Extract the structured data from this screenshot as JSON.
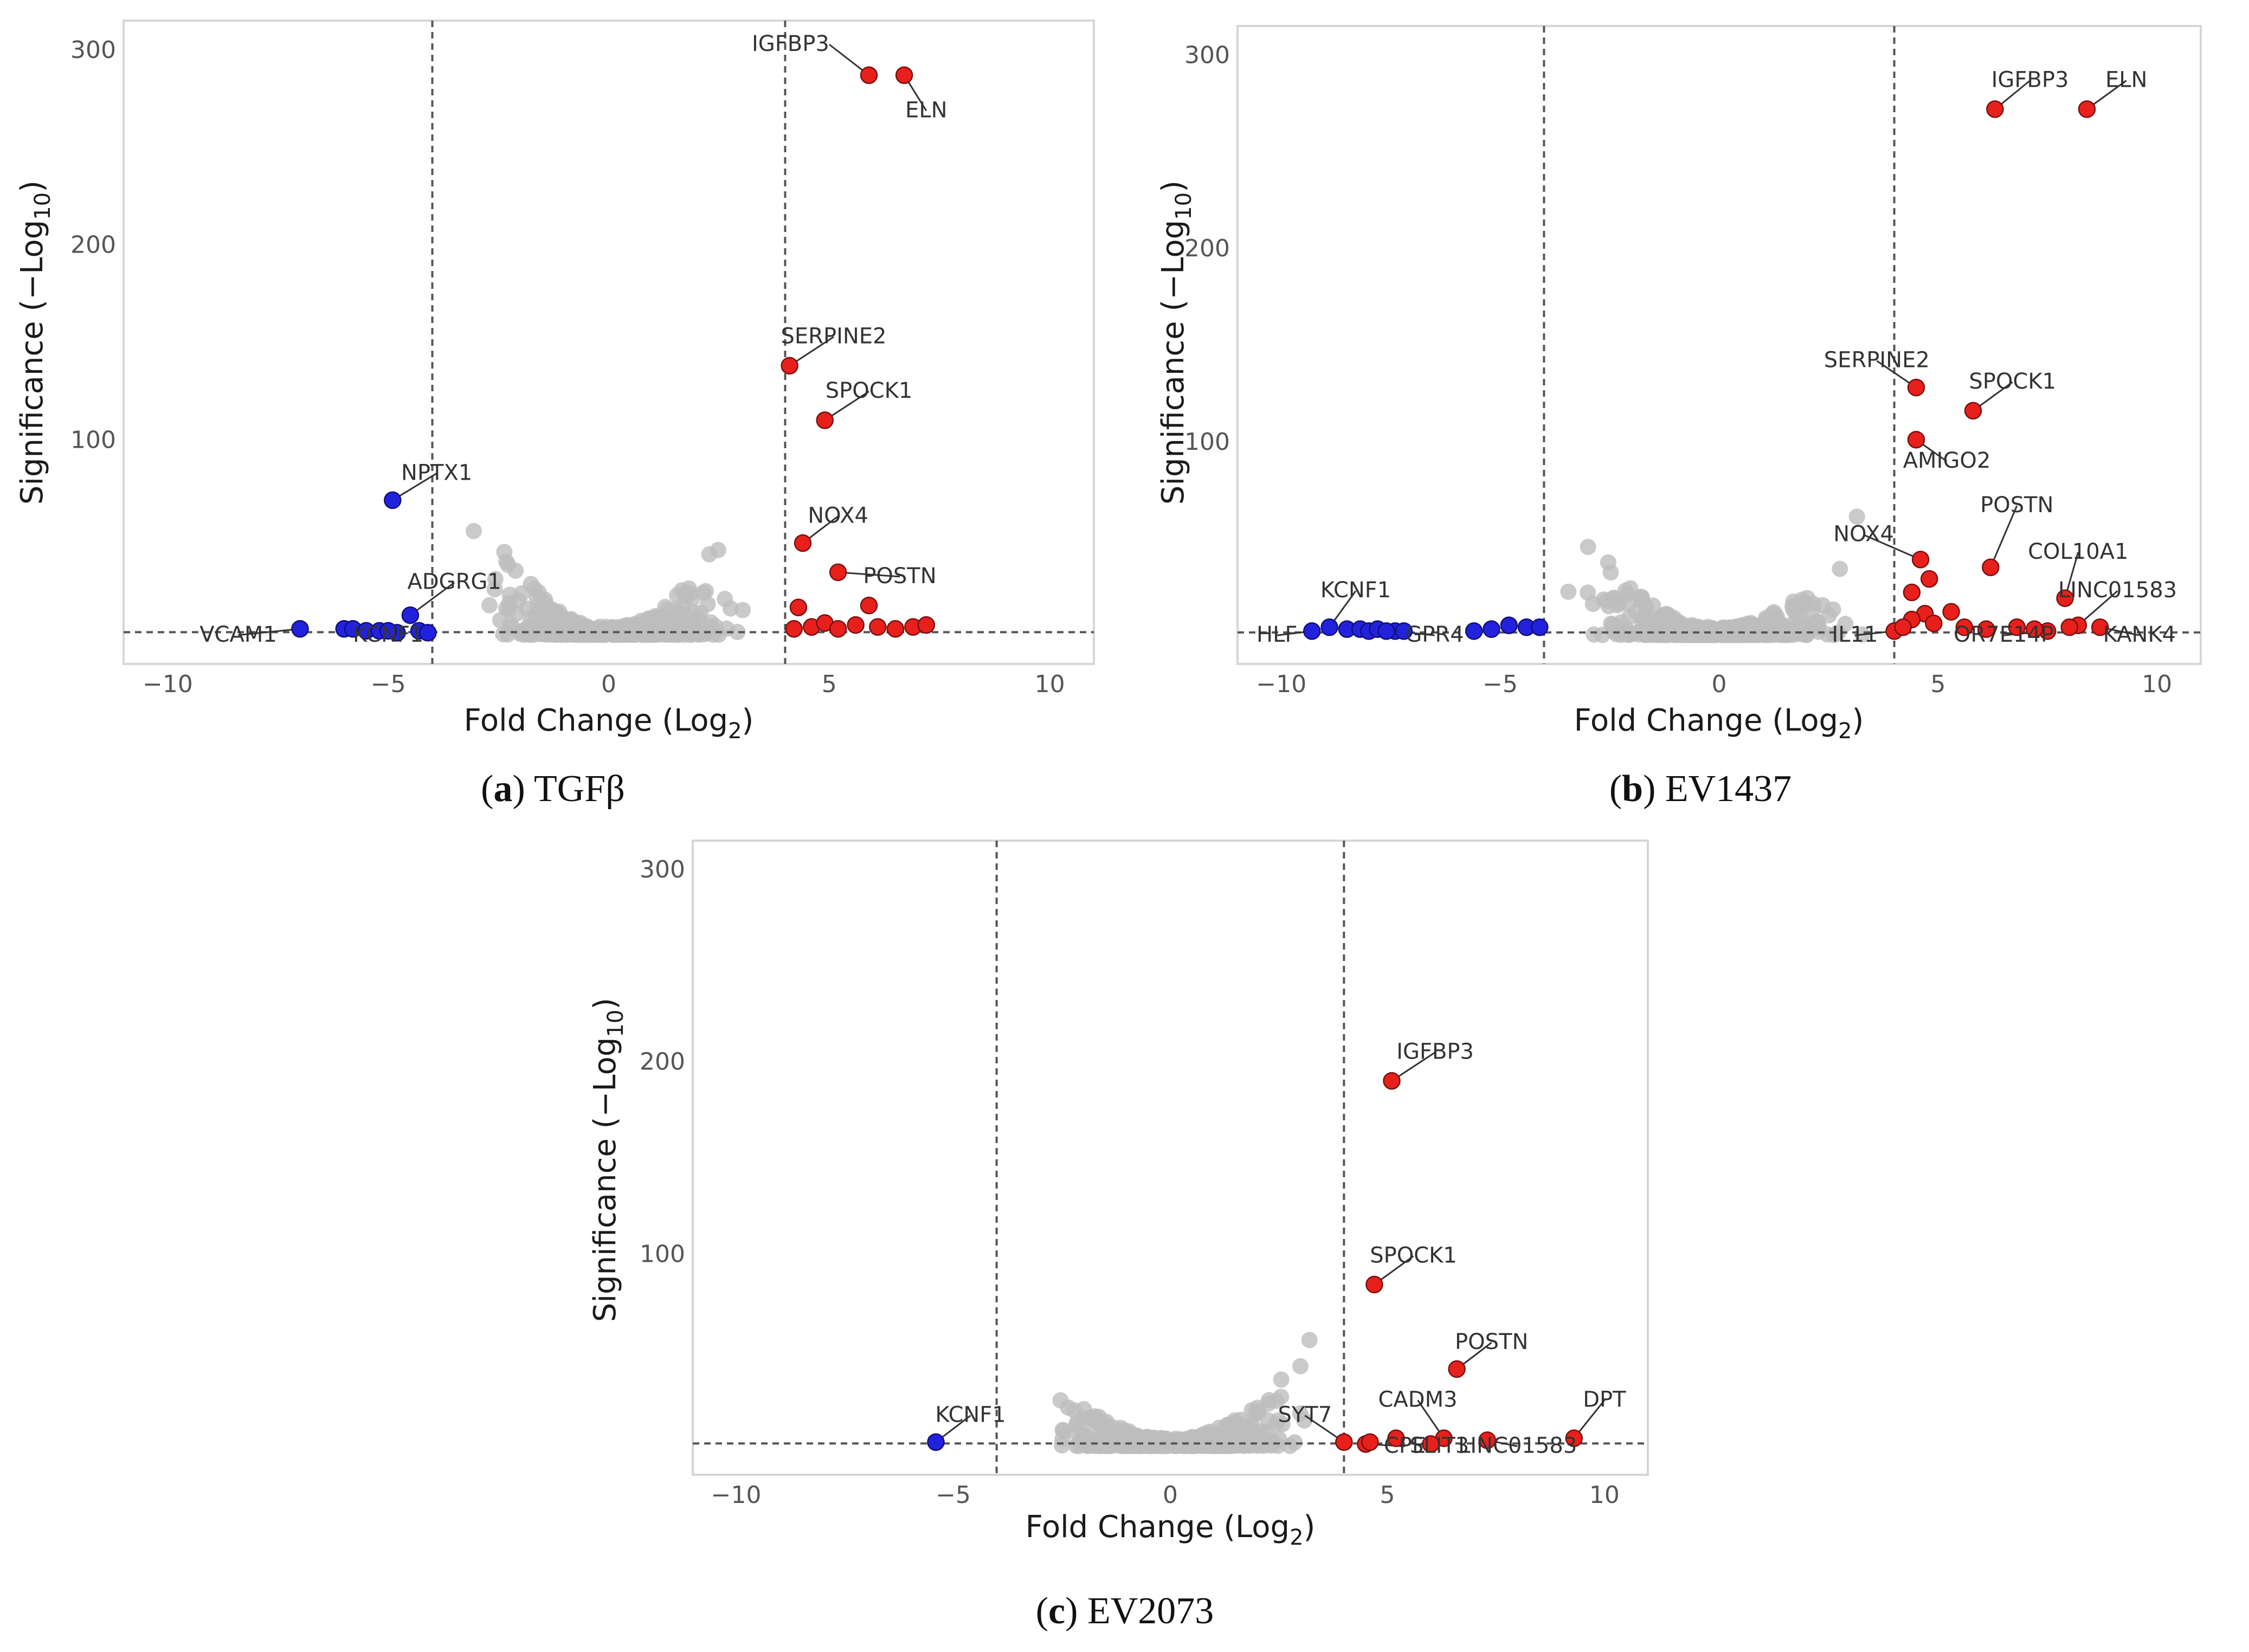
{
  "chart_data": [
    {
      "id": "a",
      "type": "scatter",
      "caption_letter": "a",
      "caption_text": "TGFβ",
      "xlabel": "Fold Change (Log",
      "xlabel_sub": "2",
      "ylabel": "Significance (−Log",
      "ylabel_sub": "10",
      "xlim": [
        -11,
        11
      ],
      "ylim": [
        -15,
        315
      ],
      "xticks": [
        -10,
        -5,
        0,
        5,
        10
      ],
      "yticks": [
        100,
        200,
        300
      ],
      "xtick_labels": [
        "−10",
        "−5",
        "0",
        "5",
        "10"
      ],
      "ytick_labels": [
        "100",
        "200",
        "300"
      ],
      "fc_threshold": 4,
      "sig_threshold": 1.3,
      "gray_max": 135,
      "points": [
        {
          "x": 5.9,
          "y": 287,
          "color": "red",
          "label": "IGFBP3",
          "lx": 5.0,
          "ly": 300,
          "anchor": "end"
        },
        {
          "x": 6.7,
          "y": 287,
          "color": "red",
          "label": "ELN",
          "lx": 7.2,
          "ly": 266,
          "anchor": "middle"
        },
        {
          "x": 4.1,
          "y": 138,
          "color": "red",
          "label": "SERPINE2",
          "lx": 5.1,
          "ly": 150,
          "anchor": "middle"
        },
        {
          "x": 4.9,
          "y": 110,
          "color": "red",
          "label": "SPOCK1",
          "lx": 5.9,
          "ly": 122,
          "anchor": "middle"
        },
        {
          "x": 4.4,
          "y": 47,
          "color": "red",
          "label": "NOX4",
          "lx": 5.2,
          "ly": 58,
          "anchor": "middle"
        },
        {
          "x": 5.2,
          "y": 32,
          "color": "red",
          "label": "POSTN",
          "lx": 6.6,
          "ly": 27,
          "anchor": "middle"
        },
        {
          "x": 5.9,
          "y": 15,
          "color": "red"
        },
        {
          "x": 4.3,
          "y": 14,
          "color": "red"
        },
        {
          "x": 4.6,
          "y": 4,
          "color": "red"
        },
        {
          "x": 4.9,
          "y": 6,
          "color": "red"
        },
        {
          "x": 5.2,
          "y": 3,
          "color": "red"
        },
        {
          "x": 5.6,
          "y": 5,
          "color": "red"
        },
        {
          "x": 6.1,
          "y": 4,
          "color": "red"
        },
        {
          "x": 6.5,
          "y": 3,
          "color": "red"
        },
        {
          "x": 6.9,
          "y": 4,
          "color": "red"
        },
        {
          "x": 7.2,
          "y": 5,
          "color": "red"
        },
        {
          "x": 4.2,
          "y": 3,
          "color": "red"
        },
        {
          "x": -4.9,
          "y": 69,
          "color": "blue",
          "label": "NPTX1",
          "lx": -3.9,
          "ly": 80,
          "anchor": "middle"
        },
        {
          "x": -4.5,
          "y": 10,
          "color": "blue",
          "label": "ADGRG1",
          "lx": -3.5,
          "ly": 24,
          "anchor": "middle"
        },
        {
          "x": -7.0,
          "y": 3,
          "color": "blue",
          "label": "VCAM1",
          "lx": -8.4,
          "ly": -3,
          "anchor": "middle"
        },
        {
          "x": -4.8,
          "y": 1,
          "color": "blue",
          "label": "KCNF1",
          "lx": -5.0,
          "ly": -3,
          "anchor": "middle"
        },
        {
          "x": -6.0,
          "y": 3,
          "color": "blue"
        },
        {
          "x": -5.8,
          "y": 3,
          "color": "blue"
        },
        {
          "x": -5.5,
          "y": 2,
          "color": "blue"
        },
        {
          "x": -5.2,
          "y": 2,
          "color": "blue"
        },
        {
          "x": -5.0,
          "y": 2,
          "color": "blue"
        },
        {
          "x": -4.3,
          "y": 2,
          "color": "blue"
        },
        {
          "x": -4.1,
          "y": 1,
          "color": "blue"
        }
      ]
    },
    {
      "id": "b",
      "type": "scatter",
      "caption_letter": "b",
      "caption_text": "EV1437",
      "xlabel": "Fold Change (Log",
      "xlabel_sub": "2",
      "ylabel": "Significance (−Log",
      "ylabel_sub": "10",
      "xlim": [
        -11,
        11
      ],
      "ylim": [
        -15,
        315
      ],
      "xticks": [
        -10,
        -5,
        0,
        5,
        10
      ],
      "yticks": [
        100,
        200,
        300
      ],
      "xtick_labels": [
        "−10",
        "−5",
        "0",
        "5",
        "10"
      ],
      "ytick_labels": [
        "100",
        "200",
        "300"
      ],
      "fc_threshold": 4,
      "sig_threshold": 1.3,
      "gray_max": 100,
      "points": [
        {
          "x": 6.3,
          "y": 272,
          "color": "red",
          "label": "IGFBP3",
          "lx": 7.1,
          "ly": 284,
          "anchor": "middle"
        },
        {
          "x": 8.4,
          "y": 272,
          "color": "red",
          "label": "ELN",
          "lx": 9.3,
          "ly": 284,
          "anchor": "middle"
        },
        {
          "x": 4.5,
          "y": 128,
          "color": "red",
          "label": "SERPINE2",
          "lx": 3.6,
          "ly": 139,
          "anchor": "middle"
        },
        {
          "x": 5.8,
          "y": 116,
          "color": "red",
          "label": "SPOCK1",
          "lx": 6.7,
          "ly": 128,
          "anchor": "middle"
        },
        {
          "x": 4.5,
          "y": 101,
          "color": "red",
          "label": "AMIGO2",
          "lx": 5.2,
          "ly": 87,
          "anchor": "middle"
        },
        {
          "x": 4.6,
          "y": 39,
          "color": "red",
          "label": "NOX4",
          "lx": 3.3,
          "ly": 49,
          "anchor": "middle"
        },
        {
          "x": 6.2,
          "y": 35,
          "color": "red",
          "label": "POSTN",
          "lx": 6.8,
          "ly": 64,
          "anchor": "middle"
        },
        {
          "x": 7.9,
          "y": 19,
          "color": "red",
          "label": "COL10A1",
          "lx": 8.2,
          "ly": 40,
          "anchor": "middle"
        },
        {
          "x": 8.2,
          "y": 5,
          "color": "red",
          "label": "LINC01583",
          "lx": 9.1,
          "ly": 20,
          "anchor": "middle"
        },
        {
          "x": 8.7,
          "y": 4,
          "color": "red",
          "label": "KANK4",
          "lx": 9.6,
          "ly": -3,
          "anchor": "middle"
        },
        {
          "x": 4.0,
          "y": 2,
          "color": "red",
          "label": "IL11",
          "lx": 3.1,
          "ly": -3,
          "anchor": "middle"
        },
        {
          "x": 7.5,
          "y": 2,
          "color": "red",
          "label": "OR7E14P",
          "lx": 6.5,
          "ly": -3,
          "anchor": "middle"
        },
        {
          "x": 4.8,
          "y": 29,
          "color": "red"
        },
        {
          "x": 4.4,
          "y": 22,
          "color": "red"
        },
        {
          "x": 4.7,
          "y": 11,
          "color": "red"
        },
        {
          "x": 5.3,
          "y": 12,
          "color": "red"
        },
        {
          "x": 4.4,
          "y": 8,
          "color": "red"
        },
        {
          "x": 4.9,
          "y": 6,
          "color": "red"
        },
        {
          "x": 5.6,
          "y": 4,
          "color": "red"
        },
        {
          "x": 6.1,
          "y": 3,
          "color": "red"
        },
        {
          "x": 6.8,
          "y": 4,
          "color": "red"
        },
        {
          "x": 7.2,
          "y": 3,
          "color": "red"
        },
        {
          "x": 8.0,
          "y": 4,
          "color": "red"
        },
        {
          "x": 4.2,
          "y": 4,
          "color": "red"
        },
        {
          "x": -8.9,
          "y": 4,
          "color": "blue",
          "label": "KCNF1",
          "lx": -8.3,
          "ly": 20,
          "anchor": "middle"
        },
        {
          "x": -9.3,
          "y": 2,
          "color": "blue",
          "label": "HLF",
          "lx": -10.1,
          "ly": -3,
          "anchor": "middle"
        },
        {
          "x": -7.4,
          "y": 2,
          "color": "blue",
          "label": "GPR4",
          "lx": -6.5,
          "ly": -3,
          "anchor": "middle"
        },
        {
          "x": -8.5,
          "y": 3,
          "color": "blue"
        },
        {
          "x": -8.2,
          "y": 3,
          "color": "blue"
        },
        {
          "x": -8.0,
          "y": 2,
          "color": "blue"
        },
        {
          "x": -7.8,
          "y": 3,
          "color": "blue"
        },
        {
          "x": -7.6,
          "y": 2,
          "color": "blue"
        },
        {
          "x": -7.2,
          "y": 2,
          "color": "blue"
        },
        {
          "x": -5.6,
          "y": 2,
          "color": "blue"
        },
        {
          "x": -5.2,
          "y": 3,
          "color": "blue"
        },
        {
          "x": -4.8,
          "y": 5,
          "color": "blue"
        },
        {
          "x": -4.4,
          "y": 4,
          "color": "blue"
        },
        {
          "x": -4.1,
          "y": 4,
          "color": "blue"
        }
      ]
    },
    {
      "id": "c",
      "type": "scatter",
      "caption_letter": "c",
      "caption_text": "EV2073",
      "xlabel": "Fold Change (Log",
      "xlabel_sub": "2",
      "ylabel": "Significance (−Log",
      "ylabel_sub": "10",
      "xlim": [
        -11,
        11
      ],
      "ylim": [
        -15,
        315
      ],
      "xticks": [
        -10,
        -5,
        0,
        5,
        10
      ],
      "yticks": [
        100,
        200,
        300
      ],
      "xtick_labels": [
        "−10",
        "−5",
        "0",
        "5",
        "10"
      ],
      "ytick_labels": [
        "100",
        "200",
        "300"
      ],
      "fc_threshold": 4,
      "sig_threshold": 1.3,
      "gray_max": 90,
      "points": [
        {
          "x": 5.1,
          "y": 190,
          "color": "red",
          "label": "IGFBP3",
          "lx": 6.1,
          "ly": 202,
          "anchor": "middle"
        },
        {
          "x": 4.7,
          "y": 84,
          "color": "red",
          "label": "SPOCK1",
          "lx": 5.6,
          "ly": 96,
          "anchor": "middle"
        },
        {
          "x": 6.6,
          "y": 40,
          "color": "red",
          "label": "POSTN",
          "lx": 7.4,
          "ly": 51,
          "anchor": "middle"
        },
        {
          "x": 6.3,
          "y": 4,
          "color": "red",
          "label": "CADM3",
          "lx": 5.7,
          "ly": 21,
          "anchor": "middle"
        },
        {
          "x": 9.3,
          "y": 4,
          "color": "red",
          "label": "DPT",
          "lx": 10.0,
          "ly": 21,
          "anchor": "middle"
        },
        {
          "x": 4.0,
          "y": 2,
          "color": "red",
          "label": "SYT7",
          "lx": 3.1,
          "ly": 13,
          "anchor": "middle"
        },
        {
          "x": 4.5,
          "y": 1,
          "color": "red",
          "label": "CPE",
          "lx": 5.4,
          "ly": -3,
          "anchor": "middle"
        },
        {
          "x": 6.0,
          "y": 1,
          "color": "red",
          "label": "SLIT3",
          "lx": 6.2,
          "ly": -3,
          "anchor": "middle"
        },
        {
          "x": 7.3,
          "y": 3,
          "color": "red",
          "label": "LINC01583",
          "lx": 8.0,
          "ly": -3,
          "anchor": "middle"
        },
        {
          "x": 4.6,
          "y": 2,
          "color": "red"
        },
        {
          "x": 5.2,
          "y": 4,
          "color": "red"
        },
        {
          "x": -5.4,
          "y": 2,
          "color": "blue",
          "label": "KCNF1",
          "lx": -4.6,
          "ly": 13,
          "anchor": "middle"
        }
      ]
    }
  ]
}
